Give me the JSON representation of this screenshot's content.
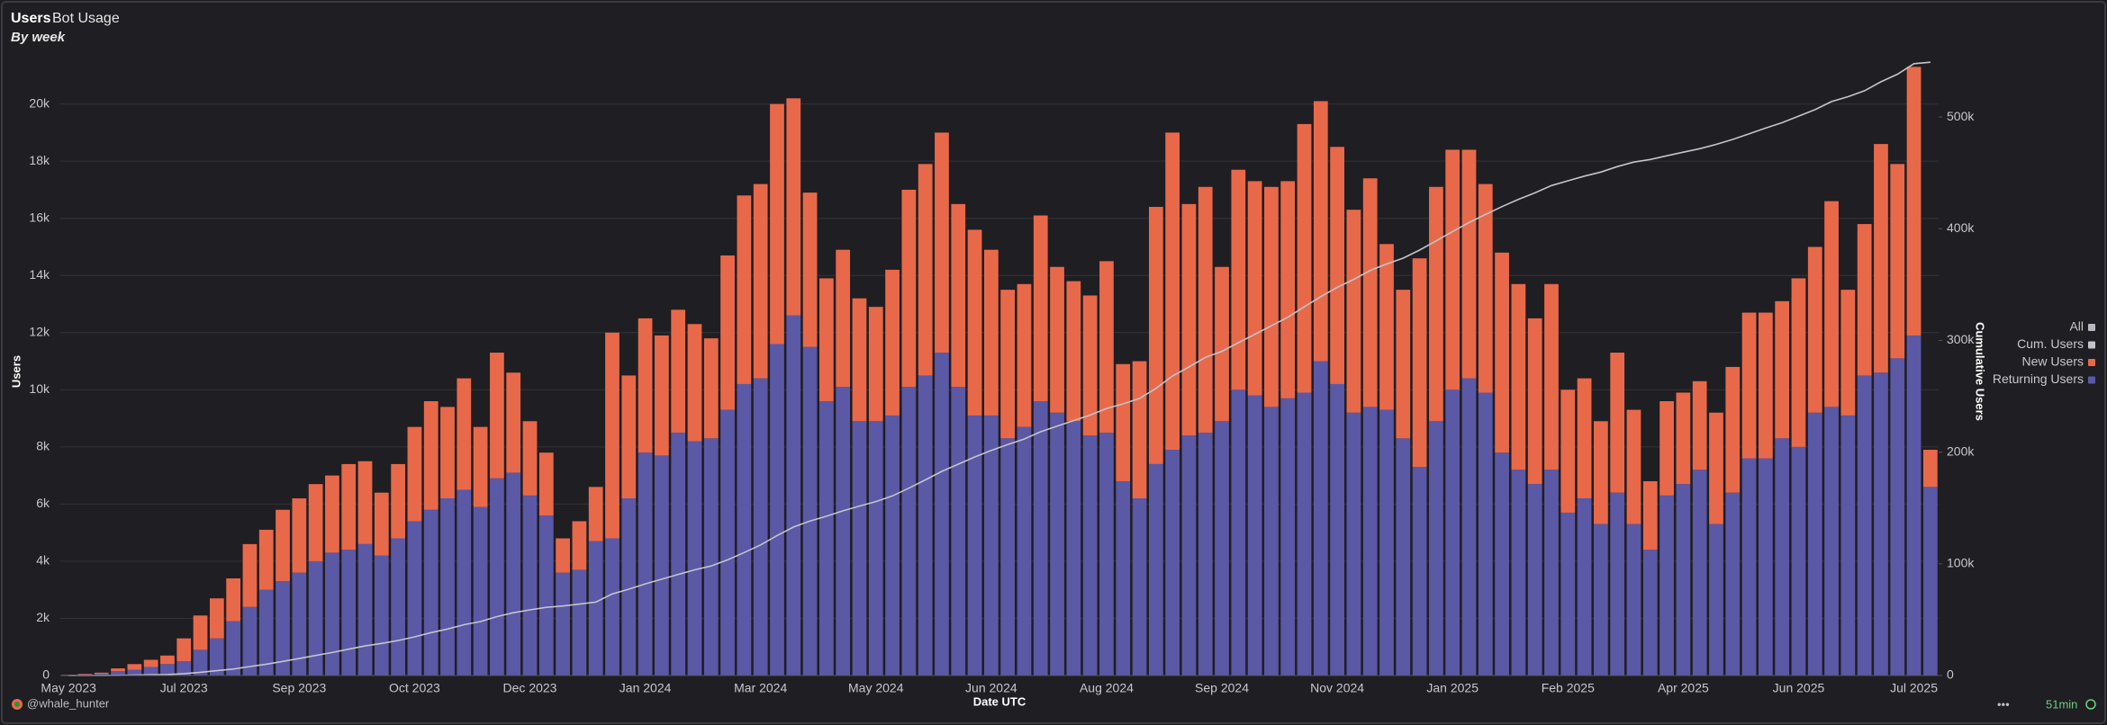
{
  "chart_data": {
    "type": "bar",
    "stacked": true,
    "title": "Users",
    "subtitle": "Bot Usage",
    "caption": "By week",
    "x_label": "Date UTC",
    "y_label": "Users",
    "y2_label": "Cumulative Users",
    "legend_all_label": "All",
    "legend_position": "right",
    "grid": true,
    "footer_author": "@whale_hunter",
    "footer_refresh": "51min",
    "categories": [
      "May 2023",
      null,
      null,
      null,
      null,
      null,
      null,
      "Jul 2023",
      null,
      null,
      null,
      null,
      null,
      null,
      "Sep 2023",
      null,
      null,
      null,
      null,
      null,
      null,
      "Oct 2023",
      null,
      null,
      null,
      null,
      null,
      null,
      "Dec 2023",
      null,
      null,
      null,
      null,
      null,
      null,
      "Jan 2024",
      null,
      null,
      null,
      null,
      null,
      null,
      "Mar 2024",
      null,
      null,
      null,
      null,
      null,
      null,
      "May 2024",
      null,
      null,
      null,
      null,
      null,
      null,
      "Jun 2024",
      null,
      null,
      null,
      null,
      null,
      null,
      "Aug 2024",
      null,
      null,
      null,
      null,
      null,
      null,
      "Sep 2024",
      null,
      null,
      null,
      null,
      null,
      null,
      "Nov 2024",
      null,
      null,
      null,
      null,
      null,
      null,
      "Jan 2025",
      null,
      null,
      null,
      null,
      null,
      null,
      "Feb 2025",
      null,
      null,
      null,
      null,
      null,
      null,
      "Apr 2025",
      null,
      null,
      null,
      null,
      null,
      null,
      "Jun 2025",
      null,
      null,
      null,
      null,
      null,
      null,
      "Jul 2025",
      null
    ],
    "series": [
      {
        "name": "Returning Users",
        "color": "#5b58a6",
        "values": [
          20,
          40,
          60,
          150,
          200,
          300,
          400,
          500,
          900,
          1300,
          1900,
          2400,
          3000,
          3300,
          3600,
          4000,
          4300,
          4400,
          4600,
          4200,
          4800,
          5400,
          5800,
          6200,
          6500,
          5900,
          6900,
          7100,
          6300,
          5600,
          3600,
          3700,
          4700,
          4800,
          6200,
          7800,
          7700,
          8500,
          8200,
          8300,
          9300,
          10200,
          10400,
          11600,
          12600,
          11500,
          9600,
          10100,
          8900,
          8900,
          9100,
          10100,
          10500,
          11300,
          10100,
          9100,
          9100,
          8300,
          8700,
          9600,
          9200,
          8900,
          8400,
          8500,
          6800,
          6200,
          7400,
          7900,
          8400,
          8500,
          8900,
          10000,
          9800,
          9400,
          9700,
          9900,
          11000,
          10200,
          9200,
          9400,
          9300,
          8300,
          7300,
          8900,
          10000,
          10400,
          9900,
          7800,
          7200,
          6700,
          7200,
          5700,
          6200,
          5300,
          6400,
          5300,
          4400,
          6300,
          6700,
          7200,
          5300,
          6400,
          7600,
          7600,
          8300,
          8000,
          9200,
          9400,
          9100,
          10500,
          10600,
          11100,
          11900,
          6600
        ]
      },
      {
        "name": "New Users",
        "color": "#e8694a",
        "values": [
          10,
          20,
          40,
          100,
          200,
          250,
          300,
          800,
          1200,
          1400,
          1500,
          2200,
          2100,
          2500,
          2600,
          2700,
          2700,
          3000,
          2900,
          2200,
          2600,
          3300,
          3800,
          3200,
          3900,
          2800,
          4400,
          3500,
          2600,
          2200,
          1200,
          1700,
          1900,
          7200,
          4300,
          4700,
          4200,
          4300,
          4100,
          3500,
          5400,
          6600,
          6800,
          8400,
          7600,
          5400,
          4300,
          4800,
          4300,
          4000,
          5100,
          6900,
          7400,
          7700,
          6400,
          6500,
          5800,
          5200,
          5000,
          6500,
          5100,
          4900,
          4900,
          6000,
          4100,
          4800,
          9000,
          11100,
          8100,
          8600,
          5400,
          7700,
          7500,
          7700,
          7600,
          9400,
          9100,
          8300,
          7100,
          8000,
          5800,
          5200,
          7300,
          8200,
          8400,
          8000,
          7300,
          7000,
          6500,
          5800,
          6500,
          4300,
          4200,
          3600,
          4900,
          4000,
          2400,
          3300,
          3200,
          3100,
          3900,
          4400,
          5100,
          5100,
          4800,
          5900,
          5800,
          7200,
          4400,
          5300,
          8000,
          6800,
          9400,
          1300
        ]
      },
      {
        "name": "Cum. Users",
        "color": "#c4c4cc",
        "type": "line",
        "axis": "y2",
        "values": [
          10,
          30,
          70,
          170,
          370,
          620,
          920,
          1720,
          2920,
          4320,
          5820,
          8020,
          10120,
          12620,
          15220,
          17920,
          20620,
          23620,
          26520,
          28720,
          31320,
          34620,
          38420,
          41620,
          45520,
          48320,
          52720,
          56220,
          58820,
          61020,
          62220,
          63920,
          65820,
          73020,
          77320,
          82020,
          86220,
          90520,
          94620,
          98120,
          103520,
          110120,
          116920,
          125320,
          132920,
          138320,
          142620,
          147420,
          151720,
          155720,
          160820,
          167720,
          175120,
          182820,
          189220,
          195720,
          201520,
          206720,
          211720,
          218220,
          223320,
          228220,
          233120,
          239120,
          243220,
          248020,
          257020,
          268120,
          276220,
          284820,
          290220,
          297920,
          305420,
          313120,
          320720,
          330120,
          339220,
          347520,
          354620,
          362620,
          368420,
          373620,
          380920,
          389120,
          397520,
          405520,
          412820,
          419820,
          426320,
          432120,
          438620,
          442920,
          447120,
          450720,
          455620,
          459620,
          462020,
          465320,
          468520,
          471620,
          475520,
          479920,
          485020,
          490120,
          494920,
          500820,
          506620,
          513820,
          518220,
          523520,
          531520,
          538320,
          547720,
          549020
        ]
      }
    ],
    "ylim": [
      0,
      21500
    ],
    "yticks": [
      0,
      {
        "value": 2000,
        "label": "2k"
      },
      {
        "value": 4000,
        "label": "4k"
      },
      {
        "value": 6000,
        "label": "6k"
      },
      {
        "value": 8000,
        "label": "8k"
      },
      {
        "value": 10000,
        "label": "10k"
      },
      {
        "value": 12000,
        "label": "12k"
      },
      {
        "value": 14000,
        "label": "14k"
      },
      {
        "value": 16000,
        "label": "16k"
      },
      {
        "value": 18000,
        "label": "18k"
      },
      {
        "value": 20000,
        "label": "20k"
      }
    ],
    "y2lim": [
      0,
      550000
    ],
    "y2ticks": [
      0,
      {
        "value": 100000,
        "label": "100k"
      },
      {
        "value": 200000,
        "label": "200k"
      },
      {
        "value": 300000,
        "label": "300k"
      },
      {
        "value": 400000,
        "label": "400k"
      },
      {
        "value": 500000,
        "label": "500k"
      }
    ]
  }
}
